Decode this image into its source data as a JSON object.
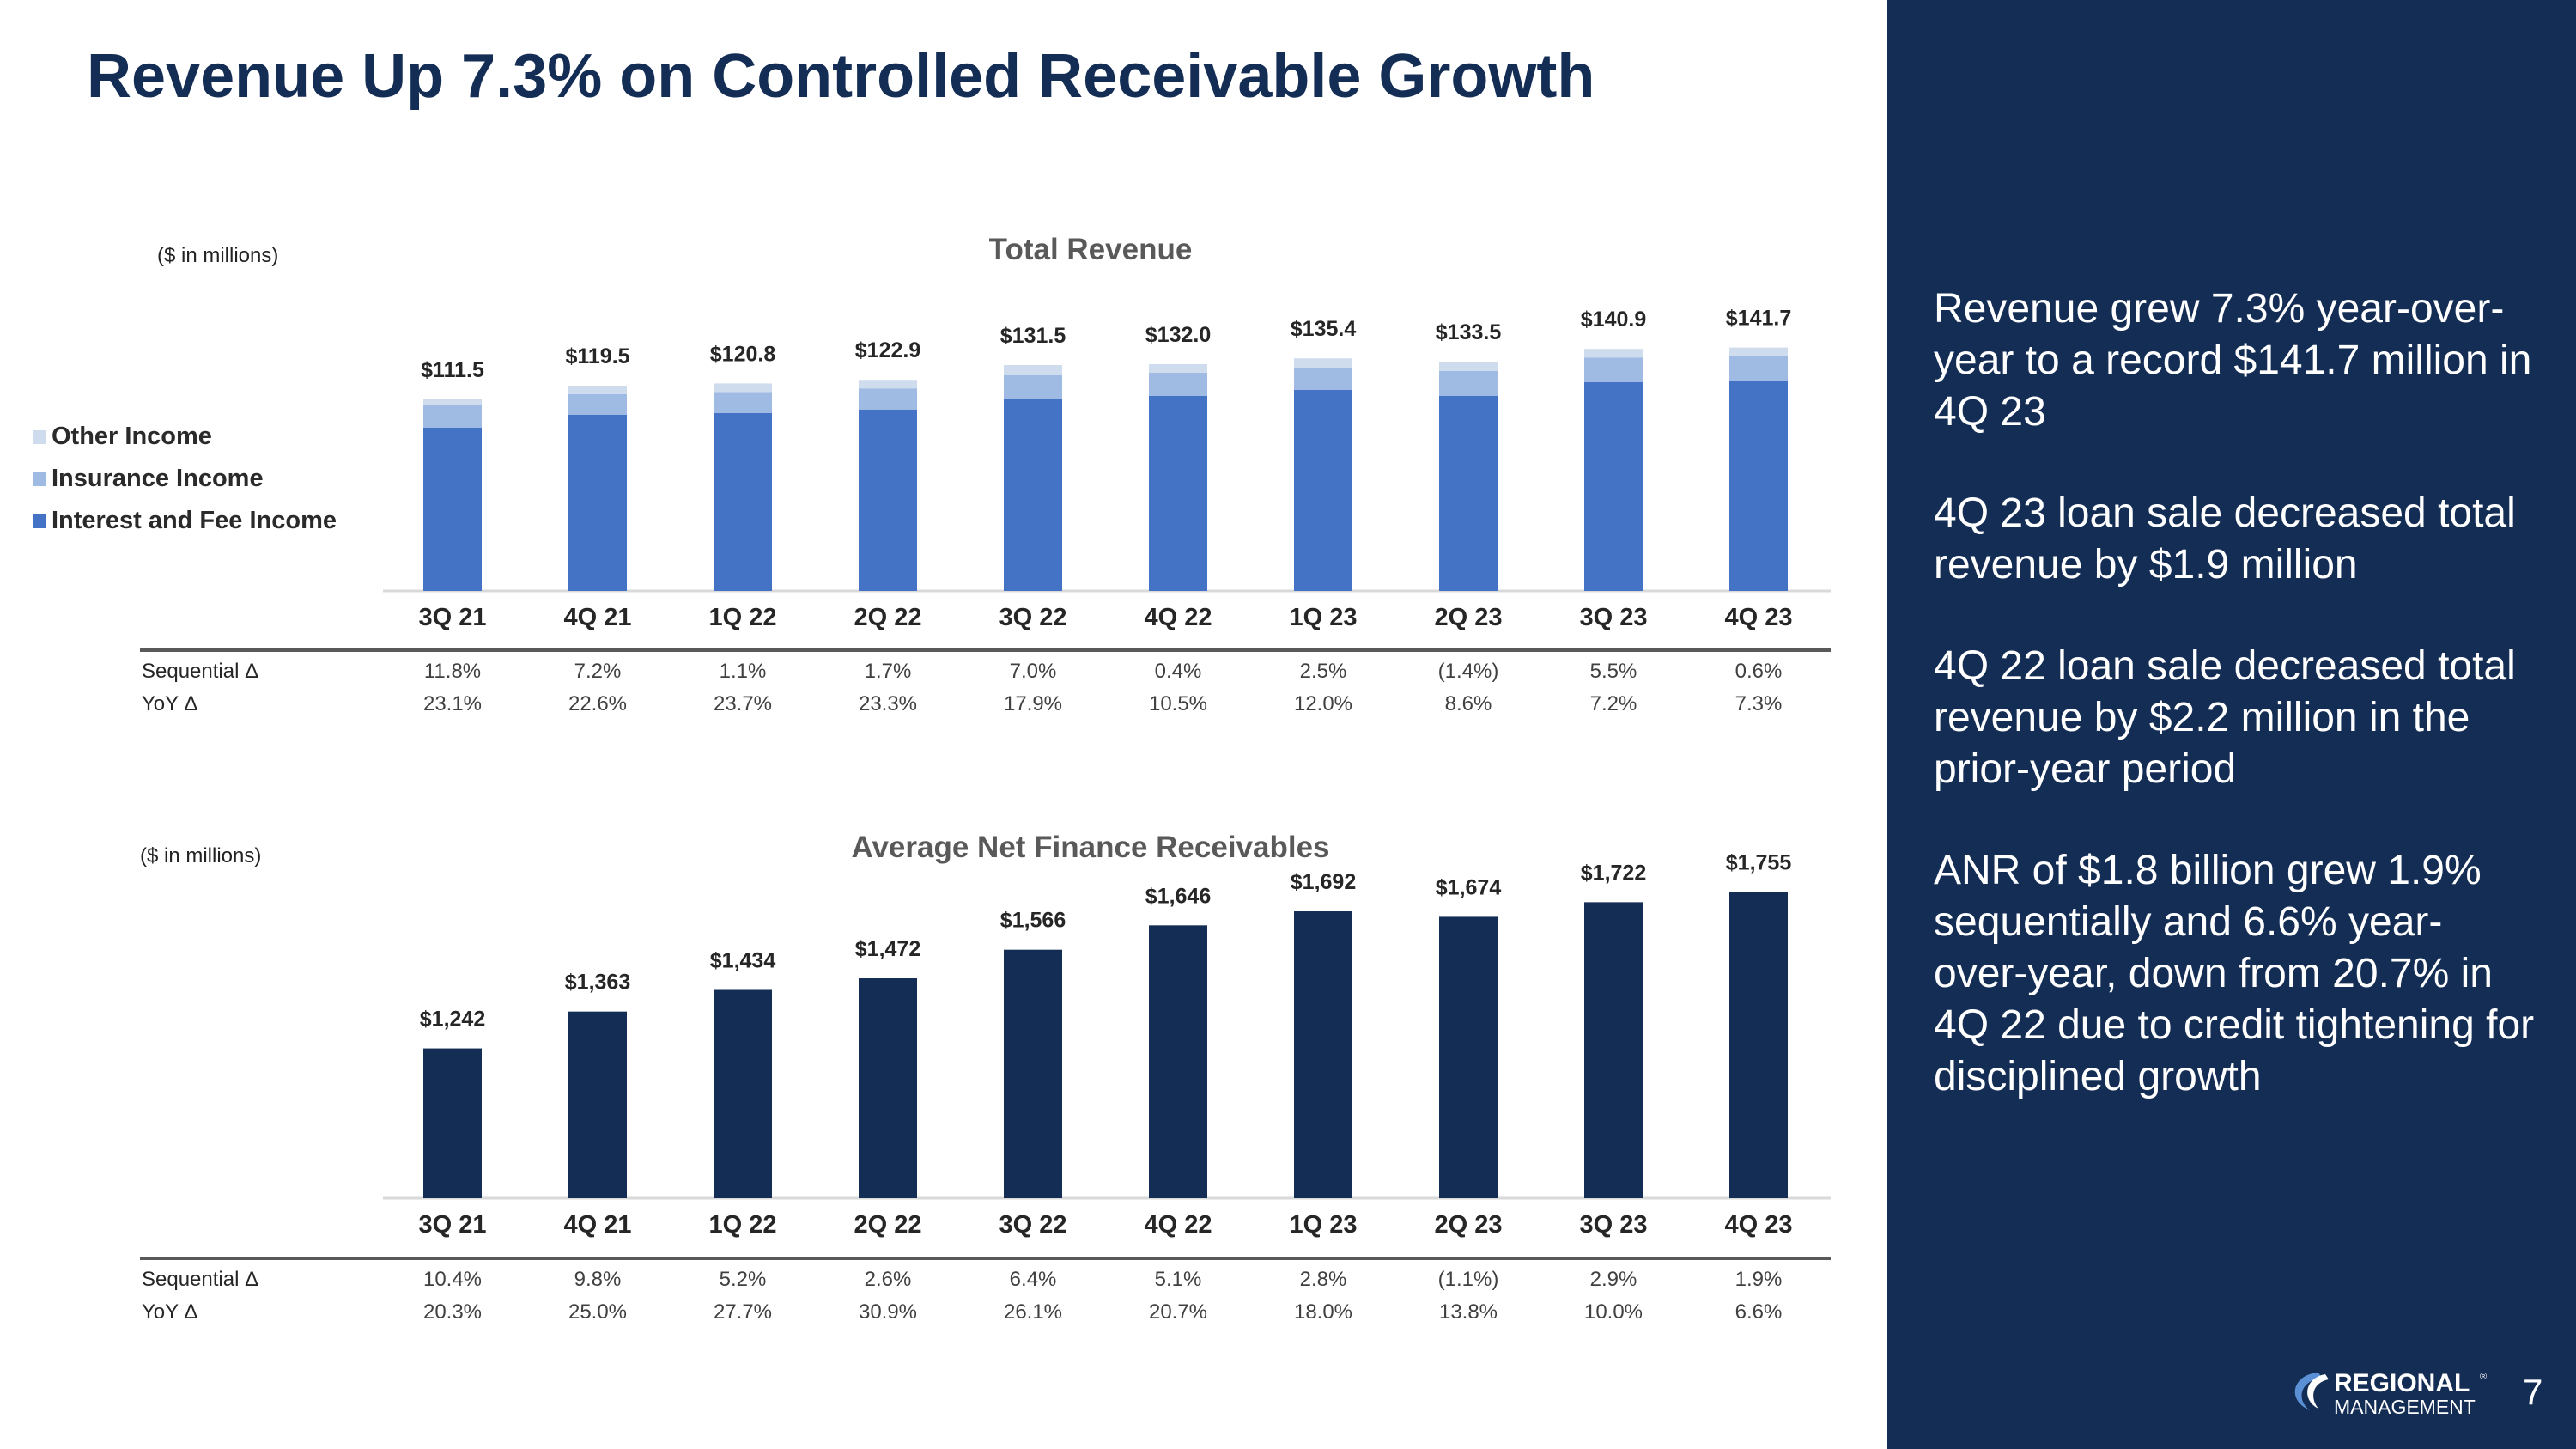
{
  "slide": {
    "title": "Revenue Up 7.3% on Controlled Receivable Growth",
    "page_number": "7",
    "logo": {
      "line1": "REGIONAL",
      "line2": "MANAGEMENT",
      "reg": "®"
    }
  },
  "colors": {
    "navy": "#142d55",
    "interest": "#4472c4",
    "insurance": "#9fbbe3",
    "other": "#cfdcee",
    "axis": "#d9d9d9",
    "rule": "#595959"
  },
  "right_panel": {
    "paragraphs": [
      "Revenue grew 7.3% year-over-year to a record $141.7 million in 4Q 23",
      "4Q 23 loan sale decreased total revenue by $1.9 million",
      "4Q 22 loan sale decreased total revenue by $2.2 million in the prior-year period",
      "ANR of $1.8 billion grew 1.9% sequentially and 6.6% year-over-year, down from 20.7% in 4Q 22 due to credit tightening for disciplined growth"
    ]
  },
  "chart_data": [
    {
      "type": "bar",
      "stacked": true,
      "title": "Total Revenue",
      "unit_note": "($ in millions)",
      "categories": [
        "3Q 21",
        "4Q 21",
        "1Q 22",
        "2Q 22",
        "3Q 22",
        "4Q 22",
        "1Q 23",
        "2Q 23",
        "3Q 23",
        "4Q 23"
      ],
      "series": [
        {
          "name": "Interest and Fee Income",
          "values": [
            95.0,
            102.5,
            103.5,
            105.5,
            111.5,
            113.5,
            117.0,
            113.5,
            121.5,
            122.5
          ]
        },
        {
          "name": "Insurance Income",
          "values": [
            13.0,
            12.0,
            12.3,
            12.4,
            14.0,
            13.5,
            12.9,
            14.5,
            14.4,
            14.2
          ]
        },
        {
          "name": "Other Income",
          "values": [
            3.5,
            5.0,
            5.0,
            5.0,
            6.0,
            5.0,
            5.5,
            5.5,
            5.0,
            5.0
          ]
        }
      ],
      "totals": [
        "$111.5",
        "$119.5",
        "$120.8",
        "$122.9",
        "$131.5",
        "$132.0",
        "$135.4",
        "$133.5",
        "$140.9",
        "$141.7"
      ],
      "ylim": [
        0,
        150
      ],
      "legend": [
        "Other Income",
        "Insurance Income",
        "Interest and Fee Income"
      ],
      "legend_position": "left",
      "table": {
        "rows": [
          {
            "label": "Sequential Δ",
            "values": [
              "11.8%",
              "7.2%",
              "1.1%",
              "1.7%",
              "7.0%",
              "0.4%",
              "2.5%",
              "(1.4%)",
              "5.5%",
              "0.6%"
            ]
          },
          {
            "label": "YoY Δ",
            "values": [
              "23.1%",
              "22.6%",
              "23.7%",
              "23.3%",
              "17.9%",
              "10.5%",
              "12.0%",
              "8.6%",
              "7.2%",
              "7.3%"
            ]
          }
        ]
      }
    },
    {
      "type": "bar",
      "title": "Average Net Finance Receivables",
      "unit_note": "($ in millions)",
      "categories": [
        "3Q 21",
        "4Q 21",
        "1Q 22",
        "2Q 22",
        "3Q 22",
        "4Q 22",
        "1Q 23",
        "2Q 23",
        "3Q 23",
        "4Q 23"
      ],
      "values": [
        1242,
        1363,
        1434,
        1472,
        1566,
        1646,
        1692,
        1674,
        1722,
        1755
      ],
      "labels": [
        "$1,242",
        "$1,363",
        "$1,434",
        "$1,472",
        "$1,566",
        "$1,646",
        "$1,692",
        "$1,674",
        "$1,722",
        "$1,755"
      ],
      "ylim": [
        750,
        1850
      ],
      "table": {
        "rows": [
          {
            "label": "Sequential Δ",
            "values": [
              "10.4%",
              "9.8%",
              "5.2%",
              "2.6%",
              "6.4%",
              "5.1%",
              "2.8%",
              "(1.1%)",
              "2.9%",
              "1.9%"
            ]
          },
          {
            "label": "YoY Δ",
            "values": [
              "20.3%",
              "25.0%",
              "27.7%",
              "30.9%",
              "26.1%",
              "20.7%",
              "18.0%",
              "13.8%",
              "10.0%",
              "6.6%"
            ]
          }
        ]
      }
    }
  ]
}
